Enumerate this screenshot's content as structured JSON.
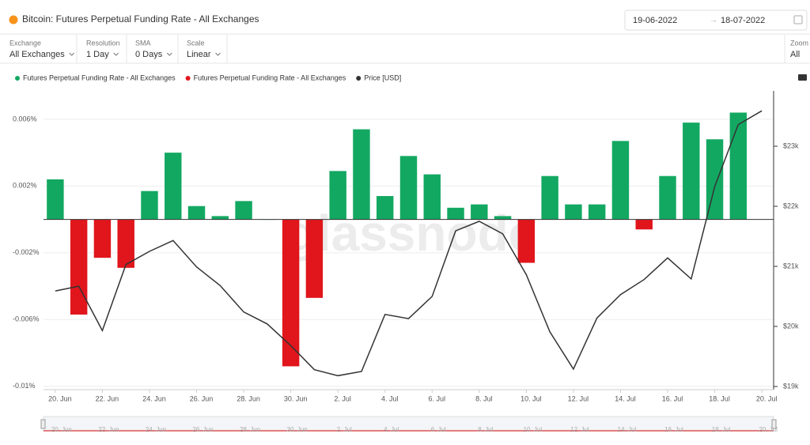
{
  "ui": {
    "title": "Bitcoin: Futures Perpetual Funding Rate - All Exchanges",
    "date_from": "19-06-2022",
    "date_to": "18-07-2022",
    "controls": [
      {
        "label": "Exchange",
        "value": "All Exchanges"
      },
      {
        "label": "Resolution",
        "value": "1 Day"
      },
      {
        "label": "SMA",
        "value": "0 Days"
      },
      {
        "label": "Scale",
        "value": "Linear"
      }
    ],
    "zoom": {
      "label": "Zoom",
      "value": "All"
    },
    "watermark": "glassnode"
  },
  "chart_data": {
    "type": "bar",
    "categories": [
      "20. Jun",
      null,
      "22. Jun",
      null,
      "24. Jun",
      null,
      "26. Jun",
      null,
      "28. Jun",
      null,
      "30. Jun",
      null,
      "2. Jul",
      null,
      "4. Jul",
      null,
      "6. Jul",
      null,
      "8. Jul",
      null,
      "10. Jul",
      null,
      "12. Jul",
      null,
      "14. Jul",
      null,
      "16. Jul",
      null,
      "18. Jul",
      null,
      "20. Jul"
    ],
    "series": [
      {
        "name": "Futures Perpetual Funding Rate - All Exchanges",
        "color": "#13a862",
        "values": [
          0.0024,
          null,
          null,
          null,
          0.0017,
          0.004,
          0.0008,
          0.0002,
          0.0011,
          0,
          null,
          null,
          0.0029,
          0.0054,
          0.0014,
          0.0038,
          0.0027,
          0.0007,
          0.0009,
          0.0002,
          null,
          0.0026,
          0.0009,
          0.0009,
          0.0047,
          null,
          0.0026,
          0.0058,
          0.0048,
          0.0064,
          null
        ]
      },
      {
        "name": "Futures Perpetual Funding Rate - All Exchanges",
        "color": "#e0161c",
        "values": [
          null,
          -0.0057,
          -0.0023,
          -0.0029,
          null,
          null,
          null,
          null,
          null,
          null,
          -0.0088,
          -0.0047,
          null,
          null,
          null,
          null,
          null,
          null,
          null,
          null,
          -0.0026,
          null,
          null,
          null,
          null,
          -0.0006,
          null,
          null,
          null,
          null,
          null
        ]
      },
      {
        "name": "Price [USD]",
        "color": "#333333",
        "type": "line",
        "axis": "y2",
        "values": [
          20590,
          20670,
          19930,
          21030,
          21250,
          21430,
          20990,
          20680,
          20240,
          20040,
          19680,
          19280,
          19180,
          19250,
          20200,
          20130,
          20500,
          21590,
          21750,
          21540,
          20860,
          19910,
          19290,
          20140,
          20530,
          20780,
          21140,
          20790,
          22330,
          23360,
          23590
        ]
      }
    ],
    "ylim": [
      -0.0102,
      0.0077
    ],
    "yticks": [
      {
        "value": 0.006,
        "label": "0.006%"
      },
      {
        "value": 0.002,
        "label": "0.002%"
      },
      {
        "value": -0.002,
        "label": "-0.002%"
      },
      {
        "value": -0.006,
        "label": "-0.006%"
      },
      {
        "value": -0.01,
        "label": "-0.01%"
      }
    ],
    "y2lim": [
      18947,
      23921
    ],
    "y2ticks": [
      {
        "value": 19000,
        "label": "$19k"
      },
      {
        "value": 20000,
        "label": "$20k"
      },
      {
        "value": 21000,
        "label": "$21k"
      },
      {
        "value": 22000,
        "label": "$22k"
      },
      {
        "value": 23000,
        "label": "$23k"
      }
    ],
    "grid": true,
    "legend": "top-left"
  }
}
